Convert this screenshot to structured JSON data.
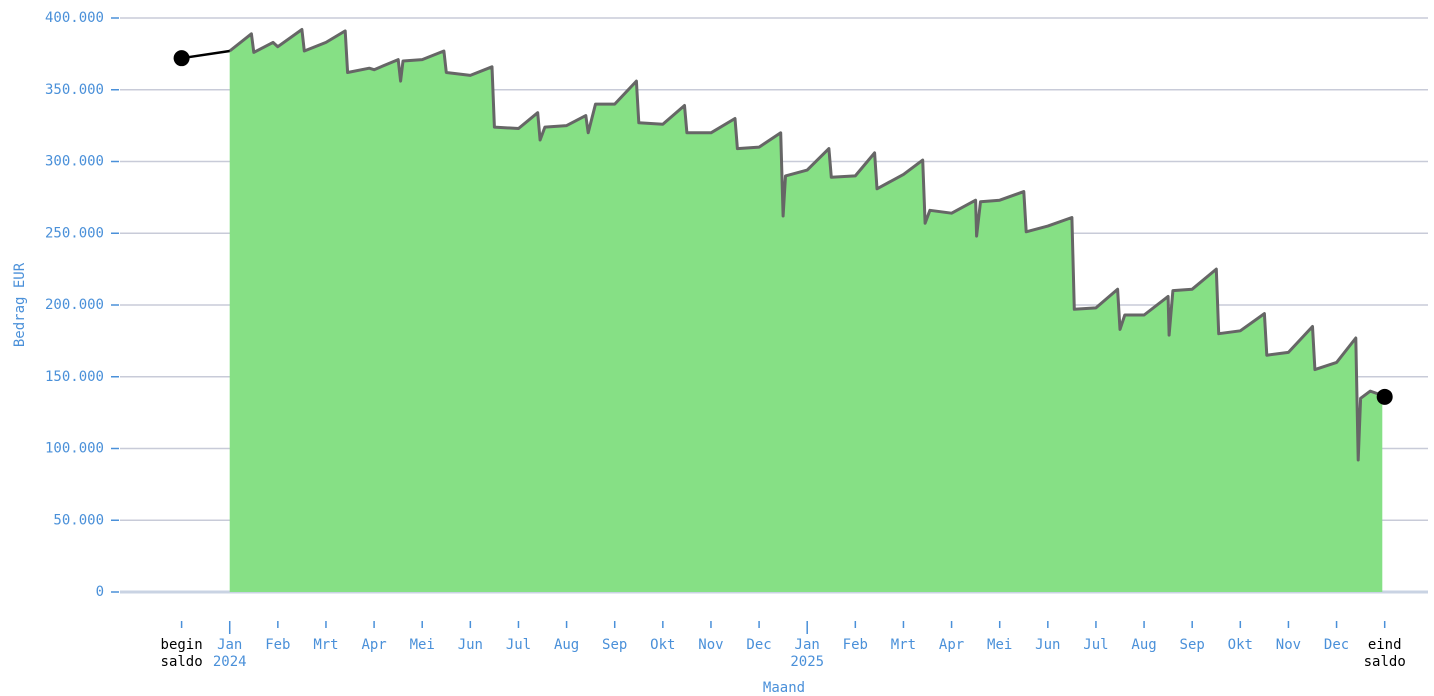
{
  "chart_data": {
    "type": "area",
    "y_label": "Bedrag EUR",
    "x_label": "Maand",
    "categories": [
      [
        "begin",
        "saldo"
      ],
      [
        "Jan",
        "2024"
      ],
      [
        "Feb"
      ],
      [
        "Mrt"
      ],
      [
        "Apr"
      ],
      [
        "Mei"
      ],
      [
        "Jun"
      ],
      [
        "Jul"
      ],
      [
        "Aug"
      ],
      [
        "Sep"
      ],
      [
        "Okt"
      ],
      [
        "Nov"
      ],
      [
        "Dec"
      ],
      [
        "Jan",
        "2025"
      ],
      [
        "Feb"
      ],
      [
        "Mrt"
      ],
      [
        "Apr"
      ],
      [
        "Mei"
      ],
      [
        "Jun"
      ],
      [
        "Jul"
      ],
      [
        "Aug"
      ],
      [
        "Sep"
      ],
      [
        "Okt"
      ],
      [
        "Nov"
      ],
      [
        "Dec"
      ],
      [
        "eind",
        "saldo"
      ]
    ],
    "xlim": [
      -1.28,
      25.9
    ],
    "ylim": [
      0,
      400000
    ],
    "yticks": [
      {
        "value": 0,
        "label": "0"
      },
      {
        "value": 50000,
        "label": "50.000"
      },
      {
        "value": 100000,
        "label": "100.000"
      },
      {
        "value": 150000,
        "label": "150.000"
      },
      {
        "value": 200000,
        "label": "200.000"
      },
      {
        "value": 250000,
        "label": "250.000"
      },
      {
        "value": 300000,
        "label": "300.000"
      },
      {
        "value": 350000,
        "label": "350.000"
      },
      {
        "value": 400000,
        "label": "400.000"
      }
    ],
    "grid": true,
    "axis_color": "#4a90d9",
    "edge_label_color": "#000000",
    "begin_saldo": 372000,
    "eind_saldo": 136000,
    "series": [
      {
        "fill": "#86e085",
        "color": "#666666",
        "x": [
          1.0,
          1.45,
          1.5,
          1.9,
          2.0,
          2.5,
          2.55,
          3.0,
          3.4,
          3.45,
          3.9,
          4.0,
          4.5,
          4.55,
          4.6,
          5.0,
          5.45,
          5.5,
          6.0,
          6.45,
          6.5,
          7.0,
          7.4,
          7.45,
          7.55,
          8.0,
          8.4,
          8.45,
          8.6,
          9.0,
          9.45,
          9.5,
          10.0,
          10.45,
          10.5,
          11.0,
          11.5,
          11.55,
          12.0,
          12.45,
          12.5,
          12.55,
          13.0,
          13.45,
          13.5,
          14.0,
          14.4,
          14.45,
          15.0,
          15.4,
          15.45,
          15.55,
          16.0,
          16.5,
          16.52,
          16.6,
          17.0,
          17.5,
          17.55,
          18.0,
          18.5,
          18.55,
          19.0,
          19.45,
          19.5,
          19.6,
          20.0,
          20.5,
          20.52,
          20.6,
          21.0,
          21.5,
          21.55,
          22.0,
          22.5,
          22.55,
          23.0,
          23.5,
          23.55,
          24.0,
          24.4,
          24.45,
          24.5,
          24.7,
          24.95
        ],
        "values": [
          377000,
          389000,
          376000,
          383000,
          380000,
          392000,
          377000,
          383000,
          391000,
          362000,
          365000,
          364000,
          371000,
          356000,
          370000,
          371000,
          377000,
          362000,
          360000,
          366000,
          324000,
          323000,
          334000,
          315000,
          324000,
          325000,
          332000,
          320000,
          340000,
          340000,
          356000,
          327000,
          326000,
          339000,
          320000,
          320000,
          330000,
          309000,
          310000,
          320000,
          262000,
          290000,
          294000,
          309000,
          289000,
          290000,
          306000,
          281000,
          291000,
          301000,
          257000,
          266000,
          264000,
          273000,
          248000,
          272000,
          273000,
          279000,
          251000,
          255000,
          261000,
          197000,
          198000,
          211000,
          183000,
          193000,
          193000,
          206000,
          179000,
          210000,
          211000,
          225000,
          180000,
          182000,
          194000,
          165000,
          167000,
          185000,
          155000,
          160000,
          177000,
          92000,
          135000,
          140000,
          137000
        ]
      }
    ]
  }
}
